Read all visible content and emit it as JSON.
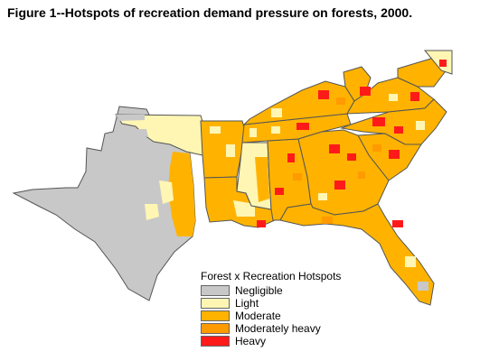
{
  "figure": {
    "title": "Figure 1--Hotspots of recreation demand pressure on forests, 2000."
  },
  "legend": {
    "title": "Forest x Recreation Hotspots",
    "items": [
      {
        "label": "Negligible",
        "color": "#c8c8c8"
      },
      {
        "label": "Light",
        "color": "#fff6b4"
      },
      {
        "label": "Moderate",
        "color": "#ffb300"
      },
      {
        "label": "Moderately heavy",
        "color": "#ff9a00"
      },
      {
        "label": "Heavy",
        "color": "#ff1a1a"
      }
    ]
  }
}
